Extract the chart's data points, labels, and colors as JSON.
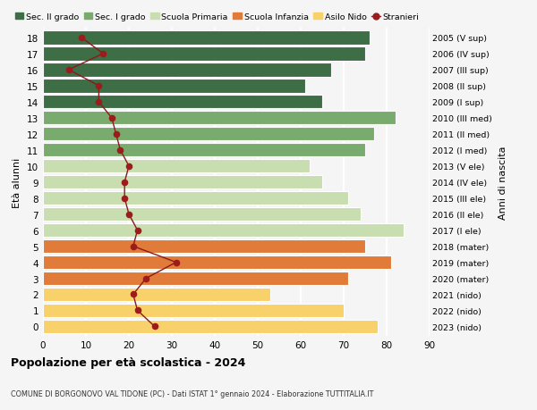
{
  "ages": [
    0,
    1,
    2,
    3,
    4,
    5,
    6,
    7,
    8,
    9,
    10,
    11,
    12,
    13,
    14,
    15,
    16,
    17,
    18
  ],
  "right_labels": [
    "2023 (nido)",
    "2022 (nido)",
    "2021 (nido)",
    "2020 (mater)",
    "2019 (mater)",
    "2018 (mater)",
    "2017 (I ele)",
    "2016 (II ele)",
    "2015 (III ele)",
    "2014 (IV ele)",
    "2013 (V ele)",
    "2012 (I med)",
    "2011 (II med)",
    "2010 (III med)",
    "2009 (I sup)",
    "2008 (II sup)",
    "2007 (III sup)",
    "2006 (IV sup)",
    "2005 (V sup)"
  ],
  "bar_values": [
    78,
    70,
    53,
    71,
    81,
    75,
    84,
    74,
    71,
    65,
    62,
    75,
    77,
    82,
    65,
    61,
    67,
    75,
    76
  ],
  "bar_colors": [
    "#f9d16a",
    "#f9d16a",
    "#f9d16a",
    "#e07b39",
    "#e07b39",
    "#e07b39",
    "#c8ddb0",
    "#c8ddb0",
    "#c8ddb0",
    "#c8ddb0",
    "#c8ddb0",
    "#7aab6e",
    "#7aab6e",
    "#7aab6e",
    "#3d6e45",
    "#3d6e45",
    "#3d6e45",
    "#3d6e45",
    "#3d6e45"
  ],
  "stranieri_values": [
    26,
    22,
    21,
    24,
    31,
    21,
    22,
    20,
    19,
    19,
    20,
    18,
    17,
    16,
    13,
    13,
    6,
    14,
    9
  ],
  "legend_labels": [
    "Sec. II grado",
    "Sec. I grado",
    "Scuola Primaria",
    "Scuola Infanzia",
    "Asilo Nido",
    "Stranieri"
  ],
  "legend_colors": [
    "#3d6e45",
    "#7aab6e",
    "#c8ddb0",
    "#e07b39",
    "#f9d16a",
    "#9e1b1b"
  ],
  "ylabel_text": "Età alunni",
  "right_ylabel": "Anni di nascita",
  "title": "Popolazione per età scolastica - 2024",
  "subtitle": "COMUNE DI BORGONOVO VAL TIDONE (PC) - Dati ISTAT 1° gennaio 2024 - Elaborazione TUTTITALIA.IT",
  "xlim": [
    0,
    90
  ],
  "xticks": [
    0,
    10,
    20,
    30,
    40,
    50,
    60,
    70,
    80,
    90
  ],
  "background_color": "#f5f5f5",
  "grid_color": "#ffffff",
  "stranieri_color": "#8b1a1a",
  "stranieri_dot_color": "#9e1b1b"
}
